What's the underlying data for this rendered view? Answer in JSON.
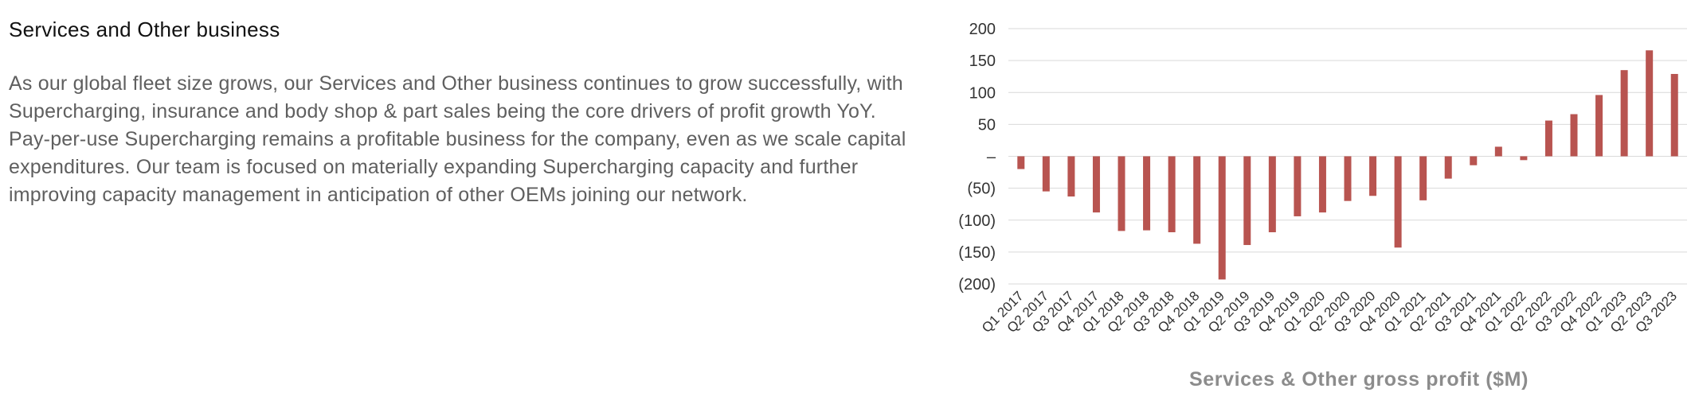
{
  "section": {
    "title": "Services and Other business",
    "body": "As our global fleet size grows, our Services and Other business continues to grow successfully, with Supercharging, insurance and body shop & part sales being the core drivers of profit growth YoY. Pay-per-use Supercharging remains a profitable business for the company, even as we scale capital expenditures. Our team is focused on materially expanding Supercharging capacity and further improving capacity management in anticipation of other OEMs joining our network."
  },
  "chart_data": {
    "type": "bar",
    "title": "Services & Other gross profit ($M)",
    "xlabel": "",
    "ylabel": "",
    "ylim": [
      -200,
      200
    ],
    "yticks": [
      200,
      150,
      100,
      50,
      0,
      -50,
      -100,
      -150,
      -200
    ],
    "ytick_labels": [
      "200",
      "150",
      "100",
      "50",
      "–",
      "(50)",
      "(100)",
      "(150)",
      "(200)"
    ],
    "grid": true,
    "bar_color": "#b85450",
    "categories": [
      "Q1 2017",
      "Q2 2017",
      "Q3 2017",
      "Q4 2017",
      "Q1 2018",
      "Q2 2018",
      "Q3 2018",
      "Q4 2018",
      "Q1 2019",
      "Q2 2019",
      "Q3 2019",
      "Q4 2019",
      "Q1 2020",
      "Q2 2020",
      "Q3 2020",
      "Q4 2020",
      "Q1 2021",
      "Q2 2021",
      "Q3 2021",
      "Q4 2021",
      "Q1 2022",
      "Q2 2022",
      "Q3 2022",
      "Q4 2022",
      "Q1 2023",
      "Q2 2023",
      "Q3 2023"
    ],
    "values": [
      -20,
      -55,
      -63,
      -88,
      -117,
      -116,
      -119,
      -137,
      -193,
      -139,
      -119,
      -94,
      -88,
      -70,
      -62,
      -143,
      -69,
      -35,
      -14,
      15,
      -6,
      56,
      66,
      96,
      135,
      166,
      129
    ]
  }
}
